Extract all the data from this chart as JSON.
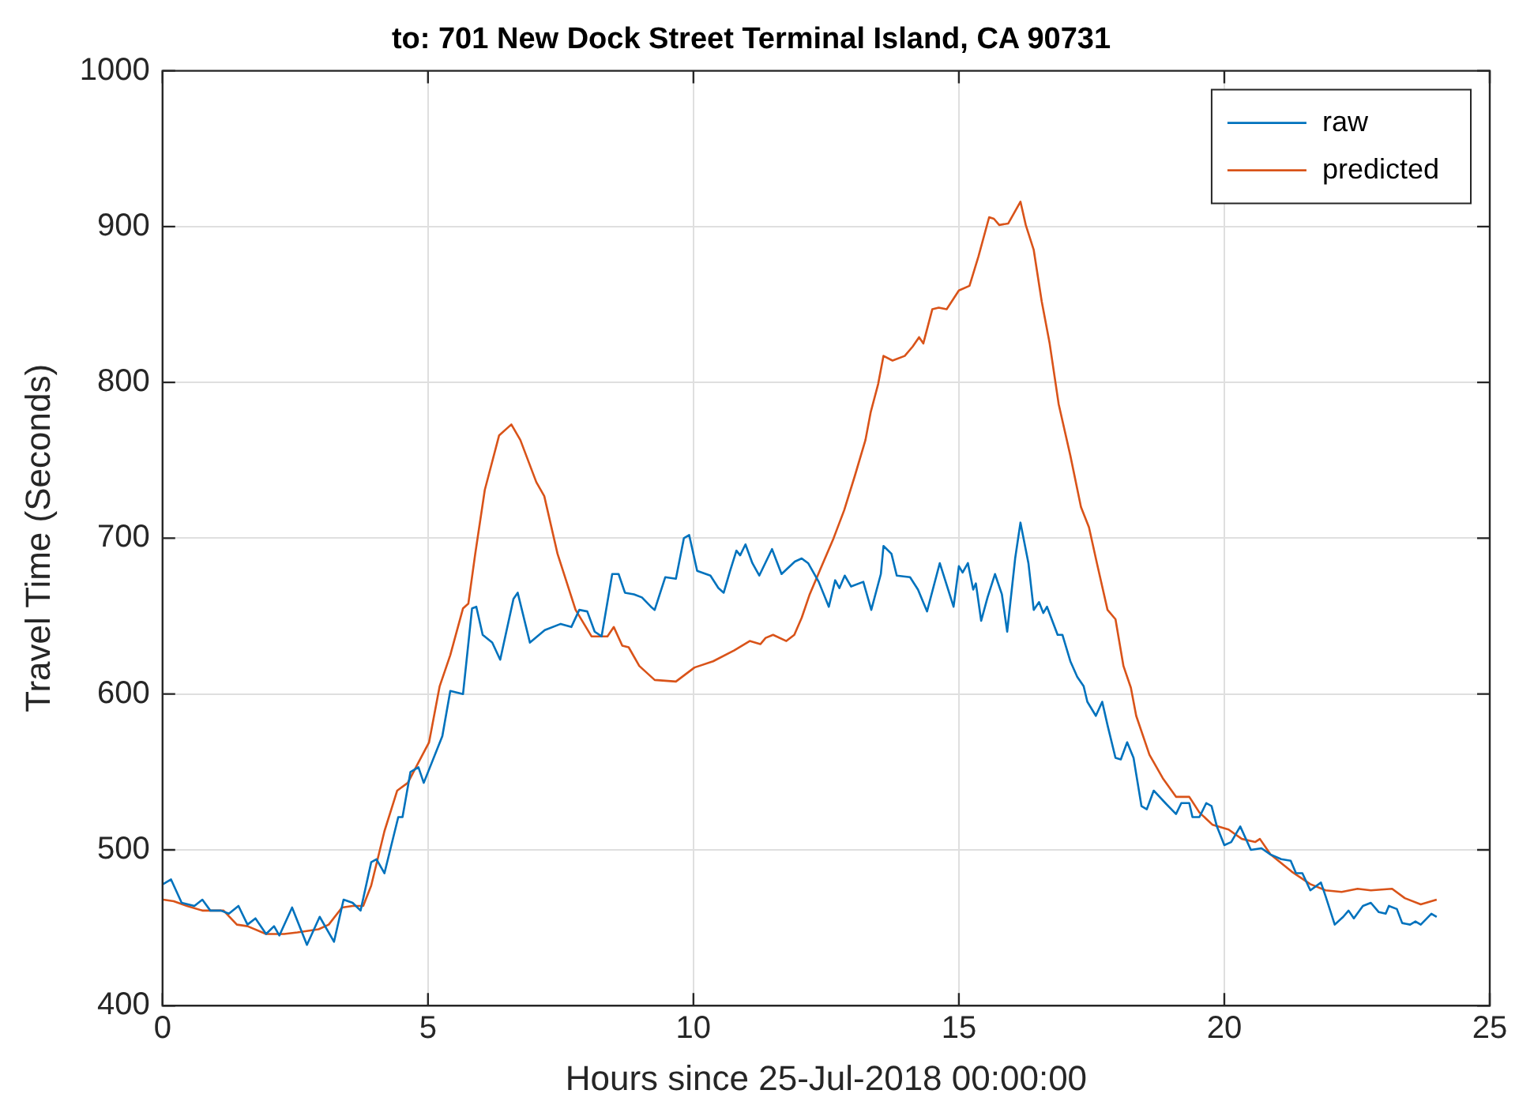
{
  "chart_data": {
    "type": "line",
    "title": "to: 701 New Dock Street Terminal Island, CA 90731",
    "xlabel": "Hours since 25-Jul-2018 00:00:00",
    "ylabel": "Travel Time (Seconds)",
    "xlim": [
      0,
      25
    ],
    "xticks": [
      0,
      5,
      10,
      15,
      20,
      25
    ],
    "ylim": [
      400,
      1000
    ],
    "yticks": [
      400,
      500,
      600,
      700,
      800,
      900,
      1000
    ],
    "grid": true,
    "legend": "top right",
    "marker": "none",
    "line_style": "solid",
    "series": [
      {
        "name": "raw",
        "color": "#0072bd",
        "x": [
          0.01,
          0.16,
          0.36,
          0.6,
          0.75,
          0.9,
          1.1,
          1.25,
          1.43,
          1.6,
          1.75,
          1.95,
          2.1,
          2.2,
          2.44,
          2.72,
          2.96,
          3.23,
          3.41,
          3.58,
          3.73,
          3.93,
          4.03,
          4.18,
          4.44,
          4.52,
          4.67,
          4.82,
          4.92,
          5.27,
          5.42,
          5.66,
          5.83,
          5.91,
          6.03,
          6.21,
          6.36,
          6.61,
          6.69,
          6.92,
          7.2,
          7.5,
          7.7,
          7.85,
          8.0,
          8.14,
          8.27,
          8.47,
          8.59,
          8.71,
          8.88,
          9.03,
          9.2,
          9.27,
          9.47,
          9.67,
          9.82,
          9.92,
          10.07,
          10.32,
          10.47,
          10.57,
          10.69,
          10.81,
          10.88,
          10.98,
          11.11,
          11.24,
          11.48,
          11.66,
          11.91,
          12.04,
          12.16,
          12.36,
          12.55,
          12.67,
          12.75,
          12.85,
          12.97,
          13.2,
          13.35,
          13.53,
          13.58,
          13.73,
          13.83,
          14.08,
          14.23,
          14.4,
          14.64,
          14.9,
          15.0,
          15.07,
          15.17,
          15.27,
          15.32,
          15.42,
          15.54,
          15.68,
          15.81,
          15.91,
          16.06,
          16.16,
          16.31,
          16.41,
          16.51,
          16.59,
          16.66,
          16.86,
          16.95,
          17.1,
          17.23,
          17.35,
          17.42,
          17.58,
          17.7,
          17.8,
          17.95,
          18.05,
          18.17,
          18.29,
          18.44,
          18.54,
          18.67,
          18.89,
          19.09,
          19.19,
          19.34,
          19.4,
          19.53,
          19.66,
          19.76,
          19.86,
          20.0,
          20.13,
          20.3,
          20.5,
          20.7,
          20.87,
          21.07,
          21.25,
          21.35,
          21.47,
          21.62,
          21.82,
          21.91,
          22.08,
          22.24,
          22.34,
          22.44,
          22.61,
          22.76,
          22.91,
          23.04,
          23.1,
          23.25,
          23.35,
          23.5,
          23.6,
          23.7,
          23.9,
          24.0
        ],
        "values": [
          478,
          481,
          466,
          464,
          468,
          461,
          461,
          459,
          464,
          452,
          456,
          446,
          451,
          445,
          463,
          439,
          457,
          441,
          468,
          466,
          461,
          492,
          494,
          485,
          521,
          521,
          550,
          553,
          543,
          573,
          602,
          600,
          655,
          656,
          638,
          633,
          622,
          661,
          665,
          633,
          641,
          645,
          643,
          654,
          653,
          640,
          637,
          677,
          677,
          665,
          664,
          662,
          656,
          654,
          675,
          674,
          700,
          702,
          679,
          676,
          668,
          665,
          679,
          692,
          689,
          696,
          684,
          676,
          693,
          677,
          685,
          687,
          684,
          672,
          656,
          673,
          668,
          676,
          669,
          672,
          654,
          677,
          695,
          690,
          676,
          675,
          667,
          653,
          684,
          656,
          682,
          678,
          684,
          667,
          671,
          647,
          662,
          677,
          664,
          640,
          687,
          710,
          684,
          654,
          659,
          652,
          656,
          638,
          638,
          621,
          611,
          605,
          595,
          586,
          595,
          580,
          559,
          558,
          569,
          559,
          528,
          526,
          538,
          530,
          523,
          530,
          530,
          521,
          521,
          530,
          528,
          515,
          503,
          505,
          515,
          500,
          501,
          497,
          494,
          493,
          485,
          485,
          474,
          479,
          470,
          452,
          457,
          461,
          456,
          464,
          466,
          460,
          459,
          464,
          462,
          453,
          452,
          454,
          452,
          459,
          457
        ]
      },
      {
        "name": "predicted",
        "color": "#d95319",
        "x": [
          0.01,
          0.21,
          0.46,
          0.75,
          1.15,
          1.4,
          1.6,
          1.95,
          2.29,
          2.54,
          2.94,
          3.13,
          3.38,
          3.58,
          3.78,
          3.93,
          4.18,
          4.42,
          4.62,
          4.82,
          5.02,
          5.22,
          5.42,
          5.66,
          5.76,
          5.89,
          6.07,
          6.34,
          6.57,
          6.74,
          7.04,
          7.19,
          7.44,
          7.78,
          8.08,
          8.38,
          8.5,
          8.66,
          8.78,
          8.98,
          9.27,
          9.67,
          10.02,
          10.37,
          10.77,
          11.06,
          11.26,
          11.36,
          11.5,
          11.75,
          11.9,
          12.04,
          12.19,
          12.39,
          12.64,
          12.84,
          13.04,
          13.24,
          13.34,
          13.48,
          13.58,
          13.75,
          13.98,
          14.13,
          14.25,
          14.33,
          14.5,
          14.62,
          14.77,
          15.0,
          15.2,
          15.37,
          15.57,
          15.66,
          15.76,
          15.93,
          16.16,
          16.26,
          16.41,
          16.56,
          16.71,
          16.88,
          17.1,
          17.3,
          17.45,
          17.6,
          17.8,
          17.95,
          18.1,
          18.24,
          18.34,
          18.59,
          18.84,
          19.09,
          19.34,
          19.53,
          19.78,
          20.08,
          20.33,
          20.58,
          20.67,
          20.87,
          21.27,
          21.62,
          21.91,
          22.21,
          22.51,
          22.76,
          23.16,
          23.4,
          23.7,
          24.0
        ],
        "values": [
          468,
          467,
          464,
          461,
          461,
          452,
          451,
          446,
          446,
          447,
          449,
          452,
          463,
          464,
          464,
          477,
          512,
          538,
          543,
          556,
          569,
          605,
          625,
          655,
          658,
          690,
          731,
          766,
          773,
          763,
          736,
          727,
          690,
          654,
          637,
          637,
          643,
          631,
          630,
          618,
          609,
          608,
          617,
          621,
          628,
          634,
          632,
          636,
          638,
          634,
          638,
          649,
          664,
          680,
          700,
          718,
          740,
          763,
          781,
          799,
          817,
          814,
          817,
          823,
          829,
          825,
          847,
          848,
          847,
          859,
          862,
          881,
          906,
          905,
          901,
          902,
          916,
          901,
          885,
          852,
          825,
          786,
          753,
          720,
          707,
          684,
          654,
          648,
          618,
          604,
          586,
          561,
          546,
          534,
          534,
          524,
          516,
          513,
          507,
          505,
          507,
          497,
          486,
          478,
          474,
          473,
          475,
          474,
          475,
          469,
          465,
          468
        ]
      }
    ]
  }
}
